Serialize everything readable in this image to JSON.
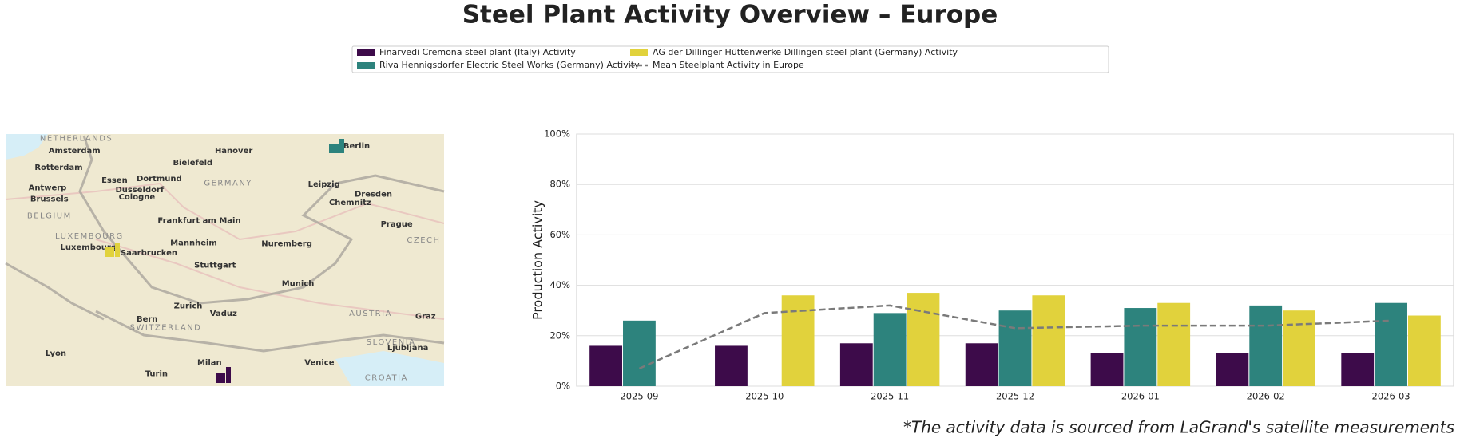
{
  "title": "Steel Plant Activity Overview – Europe",
  "footnote": "*The activity data is sourced from LaGrand's satellite measurements",
  "map": {
    "labels": [
      "NETHERLANDS",
      "Amsterdam",
      "Hanover",
      "Berlin",
      "Rotterdam",
      "Bielefeld",
      "Essen",
      "Dortmund",
      "GERMANY",
      "Antwerp",
      "Dusseldorf",
      "Leipzig",
      "Brussels",
      "Cologne",
      "Dresden",
      "Chemnitz",
      "BELGIUM",
      "Frankfurt am Main",
      "Prague",
      "LUXEMBOURG",
      "Luxembourg",
      "Saarbrucken",
      "Mannheim",
      "Nuremberg",
      "CZECH",
      "Stuttgart",
      "Munich",
      "Zurich",
      "Vaduz",
      "AUSTRIA",
      "Graz",
      "Bern",
      "SWITZERLAND",
      "SLOVENIA",
      "Ljubljana",
      "Lyon",
      "Milan",
      "Venice",
      "Turin",
      "CROATIA"
    ]
  },
  "chart_data": {
    "type": "bar",
    "y_label": "Production Activity",
    "categories": [
      "2025-09",
      "2025-10",
      "2025-11",
      "2025-12",
      "2026-01",
      "2026-02",
      "2026-03"
    ],
    "series": [
      {
        "name": "Finarvedi Cremona steel plant (Italy) Activity",
        "color": "#3d0b4a",
        "values": [
          16,
          16,
          17,
          17,
          13,
          13,
          13
        ]
      },
      {
        "name": "Riva Hennigsdorfer Electric Steel Works (Germany) Activity",
        "color": "#2d837d",
        "values": [
          26,
          null,
          29,
          30,
          31,
          32,
          33
        ]
      },
      {
        "name": "AG der Dillinger Hüttenwerke Dillingen steel plant (Germany) Activity",
        "color": "#e1d23c",
        "values": [
          null,
          36,
          37,
          36,
          33,
          30,
          28
        ]
      },
      {
        "name": "Mean Steelplant Activity in Europe",
        "color": "#7a7a7a",
        "type": "line",
        "linestyle": "dashed",
        "values": [
          7,
          29,
          32,
          23,
          24,
          24,
          26
        ]
      }
    ],
    "ylim": [
      0,
      100
    ],
    "yticks": [
      {
        "value": 0,
        "label": "0%"
      },
      {
        "value": 20,
        "label": "20%"
      },
      {
        "value": 40,
        "label": "40%"
      },
      {
        "value": 60,
        "label": "60%"
      },
      {
        "value": 80,
        "label": "80%"
      },
      {
        "value": 100,
        "label": "100%"
      }
    ],
    "grid": true
  }
}
